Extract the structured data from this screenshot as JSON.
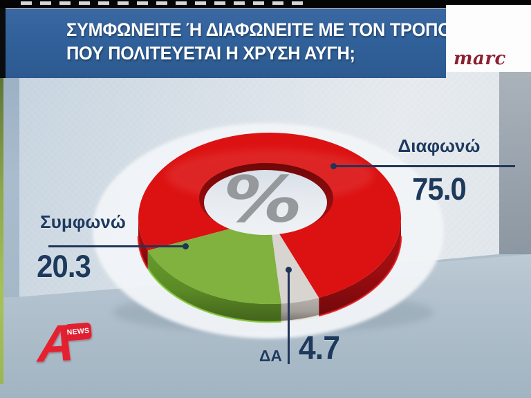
{
  "header": {
    "question_line1": "ΣΥΜΦΩΝΕΙΤΕ Ή ΔΙΑΦΩΝΕΙΤΕ ΜΕ ΤΟΝ ΤΡΟΠΟ",
    "question_line2": "ΠΟΥ ΠΟΛΙΤΕΥΕΤΑΙ Η ΧΡΥΣΗ ΑΥΓΗ;"
  },
  "pollster": {
    "name": "marc"
  },
  "channel": {
    "letter": "A",
    "badge": "NEWS"
  },
  "chart_data": {
    "type": "pie",
    "style": "3d_donut",
    "title": "ΣΥΜΦΩΝΕΙΤΕ Ή ΔΙΑΦΩΝΕΙΤΕ ΜΕ ΤΟΝ ΤΡΟΠΟ ΠΟΥ ΠΟΛΙΤΕΥΕΤΑΙ Η ΧΡΥΣΗ ΑΥΓΗ;",
    "unit": "percent",
    "center_label": "%",
    "legend_position": "callout-labels",
    "slices": [
      {
        "label": "Διαφωνώ",
        "value": 75.0,
        "color": "#dc1212",
        "side_color": "#9c0d10"
      },
      {
        "label": "Συμφωνώ",
        "value": 20.3,
        "color": "#81b13e",
        "side_color": "#5b8a26"
      },
      {
        "label": "ΔΑ",
        "value": 4.7,
        "color": "#d8d4cf",
        "side_color": "#a49f9a"
      }
    ]
  }
}
